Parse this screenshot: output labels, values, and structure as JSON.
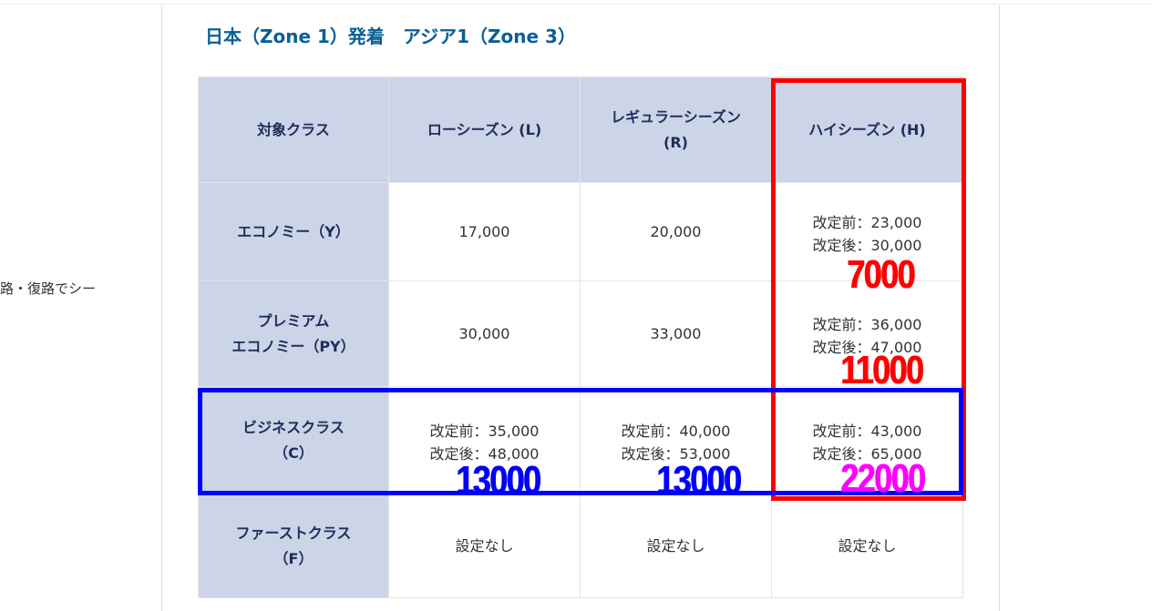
{
  "left_snippet": "路・復路でシー",
  "heading": "日本（Zone 1）発着　アジア1（Zone 3）",
  "table": {
    "headers": [
      "対象クラス",
      "ローシーズン (L)",
      "レギュラーシーズン\n(R)",
      "ハイシーズン (H)"
    ],
    "rows": [
      {
        "class": "エコノミー（Y）",
        "low": "17,000",
        "regular": "20,000",
        "high_before": "改定前：23,000",
        "high_after": "改定後：30,000"
      },
      {
        "class": "プレミアム\nエコノミー（PY）",
        "low": "30,000",
        "regular": "33,000",
        "high_before": "改定前：36,000",
        "high_after": "改定後：47,000"
      },
      {
        "class": "ビジネスクラス\n（C）",
        "low_before": "改定前：35,000",
        "low_after": "改定後：48,000",
        "regular_before": "改定前：40,000",
        "regular_after": "改定後：53,000",
        "high_before": "改定前：43,000",
        "high_after": "改定後：65,000"
      },
      {
        "class": "ファーストクラス\n（F）",
        "low": "設定なし",
        "regular": "設定なし",
        "high": "設定なし"
      }
    ]
  },
  "annotations": {
    "economy_high_diff": "7000",
    "premium_high_diff": "11000",
    "business_low_diff": "13000",
    "business_regular_diff": "13000",
    "business_high_diff": "22000"
  },
  "colors": {
    "heading": "#0a5f96",
    "header_bg": "#ccd4e8",
    "red_box": "#ff0000",
    "blue_box": "#0000ff",
    "magenta_text": "#ff00ff"
  }
}
